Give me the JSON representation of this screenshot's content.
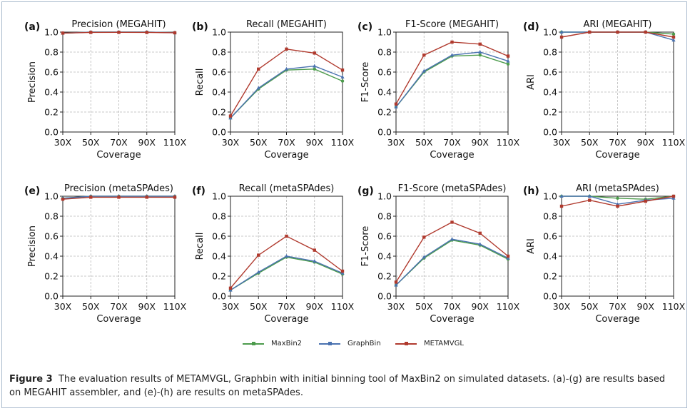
{
  "colors": {
    "MaxBin2": "#4c9b4c",
    "GraphBin": "#4a72b0",
    "METAMVGL": "#b03a2e"
  },
  "legend": [
    "MaxBin2",
    "GraphBin",
    "METAMVGL"
  ],
  "caption": {
    "label": "Figure 3",
    "text": "The evaluation results of METAMVGL, Graphbin with initial binning tool of MaxBin2 on simulated datasets. (a)-(g) are results based on MEGAHIT assembler, and (e)-(h) are results on metaSPAdes."
  },
  "chart_data": [
    {
      "id": "a",
      "panel_label": "(a)",
      "type": "line",
      "title": "Precision (MEGAHIT)",
      "xlabel": "Coverage",
      "ylabel": "Precision",
      "categories": [
        "30X",
        "50X",
        "70X",
        "90X",
        "110X"
      ],
      "ylim": [
        0,
        1.0
      ],
      "yticks": [
        "0.0",
        "0.2",
        "0.4",
        "0.6",
        "0.8",
        "1.0"
      ],
      "grid": true,
      "series": [
        {
          "name": "MaxBin2",
          "values": [
            0.99,
            1.0,
            1.0,
            1.0,
            0.995
          ]
        },
        {
          "name": "GraphBin",
          "values": [
            0.99,
            1.0,
            1.0,
            1.0,
            0.995
          ]
        },
        {
          "name": "METAMVGL",
          "values": [
            0.99,
            0.997,
            0.998,
            0.997,
            0.993
          ]
        }
      ]
    },
    {
      "id": "b",
      "panel_label": "(b)",
      "type": "line",
      "title": "Recall (MEGAHIT)",
      "xlabel": "Coverage",
      "ylabel": "Recall",
      "categories": [
        "30X",
        "50X",
        "70X",
        "90X",
        "110X"
      ],
      "ylim": [
        0,
        1.0
      ],
      "yticks": [
        "0.0",
        "0.2",
        "0.4",
        "0.6",
        "0.8",
        "1.0"
      ],
      "grid": true,
      "series": [
        {
          "name": "MaxBin2",
          "values": [
            0.14,
            0.43,
            0.62,
            0.63,
            0.51
          ]
        },
        {
          "name": "GraphBin",
          "values": [
            0.14,
            0.44,
            0.63,
            0.66,
            0.55
          ]
        },
        {
          "name": "METAMVGL",
          "values": [
            0.16,
            0.63,
            0.83,
            0.79,
            0.62
          ]
        }
      ]
    },
    {
      "id": "c",
      "panel_label": "(c)",
      "type": "line",
      "title": "F1-Score (MEGAHIT)",
      "xlabel": "Coverage",
      "ylabel": "F1-Score",
      "categories": [
        "30X",
        "50X",
        "70X",
        "90X",
        "110X"
      ],
      "ylim": [
        0,
        1.0
      ],
      "yticks": [
        "0.0",
        "0.2",
        "0.4",
        "0.6",
        "0.8",
        "1.0"
      ],
      "grid": true,
      "series": [
        {
          "name": "MaxBin2",
          "values": [
            0.25,
            0.6,
            0.76,
            0.77,
            0.68
          ]
        },
        {
          "name": "GraphBin",
          "values": [
            0.25,
            0.61,
            0.77,
            0.8,
            0.71
          ]
        },
        {
          "name": "METAMVGL",
          "values": [
            0.28,
            0.77,
            0.9,
            0.88,
            0.76
          ]
        }
      ]
    },
    {
      "id": "d",
      "panel_label": "(d)",
      "type": "line",
      "title": "ARI (MEGAHIT)",
      "xlabel": "Coverage",
      "ylabel": "ARI",
      "categories": [
        "30X",
        "50X",
        "70X",
        "90X",
        "110X"
      ],
      "ylim": [
        0,
        1.0
      ],
      "yticks": [
        "0.0",
        "0.2",
        "0.4",
        "0.6",
        "0.8",
        "1.0"
      ],
      "grid": true,
      "series": [
        {
          "name": "MaxBin2",
          "values": [
            1.0,
            1.0,
            1.0,
            1.0,
            0.98
          ]
        },
        {
          "name": "GraphBin",
          "values": [
            1.0,
            1.0,
            1.0,
            1.0,
            0.92
          ]
        },
        {
          "name": "METAMVGL",
          "values": [
            0.95,
            1.0,
            1.0,
            1.0,
            0.95
          ]
        }
      ]
    },
    {
      "id": "e",
      "panel_label": "(e)",
      "type": "line",
      "title": "Precision (metaSPAdes)",
      "xlabel": "Coverage",
      "ylabel": "Precision",
      "categories": [
        "30X",
        "50X",
        "70X",
        "90X",
        "110X"
      ],
      "ylim": [
        0,
        1.0
      ],
      "yticks": [
        "0.0",
        "0.2",
        "0.4",
        "0.6",
        "0.8",
        "1.0"
      ],
      "grid": true,
      "series": [
        {
          "name": "MaxBin2",
          "values": [
            0.98,
            1.0,
            1.0,
            1.0,
            1.0
          ]
        },
        {
          "name": "GraphBin",
          "values": [
            0.98,
            1.0,
            1.0,
            1.0,
            1.0
          ]
        },
        {
          "name": "METAMVGL",
          "values": [
            0.97,
            0.99,
            0.99,
            0.99,
            0.99
          ]
        }
      ]
    },
    {
      "id": "f",
      "panel_label": "(f)",
      "type": "line",
      "title": "Recall (metaSPAdes)",
      "xlabel": "Coverage",
      "ylabel": "Recall",
      "categories": [
        "30X",
        "50X",
        "70X",
        "90X",
        "110X"
      ],
      "ylim": [
        0,
        1.0
      ],
      "yticks": [
        "0.0",
        "0.2",
        "0.4",
        "0.6",
        "0.8",
        "1.0"
      ],
      "grid": true,
      "series": [
        {
          "name": "MaxBin2",
          "values": [
            0.06,
            0.23,
            0.39,
            0.34,
            0.22
          ]
        },
        {
          "name": "GraphBin",
          "values": [
            0.06,
            0.24,
            0.4,
            0.35,
            0.23
          ]
        },
        {
          "name": "METAMVGL",
          "values": [
            0.08,
            0.41,
            0.6,
            0.46,
            0.25
          ]
        }
      ]
    },
    {
      "id": "g",
      "panel_label": "(g)",
      "type": "line",
      "title": "F1-Score (metaSPAdes)",
      "xlabel": "Coverage",
      "ylabel": "F1-Score",
      "categories": [
        "30X",
        "50X",
        "70X",
        "90X",
        "110X"
      ],
      "ylim": [
        0,
        1.0
      ],
      "yticks": [
        "0.0",
        "0.2",
        "0.4",
        "0.6",
        "0.8",
        "1.0"
      ],
      "grid": true,
      "series": [
        {
          "name": "MaxBin2",
          "values": [
            0.11,
            0.38,
            0.56,
            0.51,
            0.37
          ]
        },
        {
          "name": "GraphBin",
          "values": [
            0.11,
            0.39,
            0.57,
            0.52,
            0.38
          ]
        },
        {
          "name": "METAMVGL",
          "values": [
            0.14,
            0.59,
            0.74,
            0.63,
            0.4
          ]
        }
      ]
    },
    {
      "id": "h",
      "panel_label": "(h)",
      "type": "line",
      "title": "ARI (metaSPAdes)",
      "xlabel": "Coverage",
      "ylabel": "ARI",
      "categories": [
        "30X",
        "50X",
        "70X",
        "90X",
        "110X"
      ],
      "ylim": [
        0,
        1.0
      ],
      "yticks": [
        "0.0",
        "0.2",
        "0.4",
        "0.6",
        "0.8",
        "1.0"
      ],
      "grid": true,
      "series": [
        {
          "name": "MaxBin2",
          "values": [
            1.0,
            1.0,
            0.98,
            0.97,
            1.0
          ]
        },
        {
          "name": "GraphBin",
          "values": [
            1.0,
            1.0,
            0.92,
            0.96,
            0.98
          ]
        },
        {
          "name": "METAMVGL",
          "values": [
            0.9,
            0.96,
            0.9,
            0.95,
            1.0
          ]
        }
      ]
    }
  ]
}
